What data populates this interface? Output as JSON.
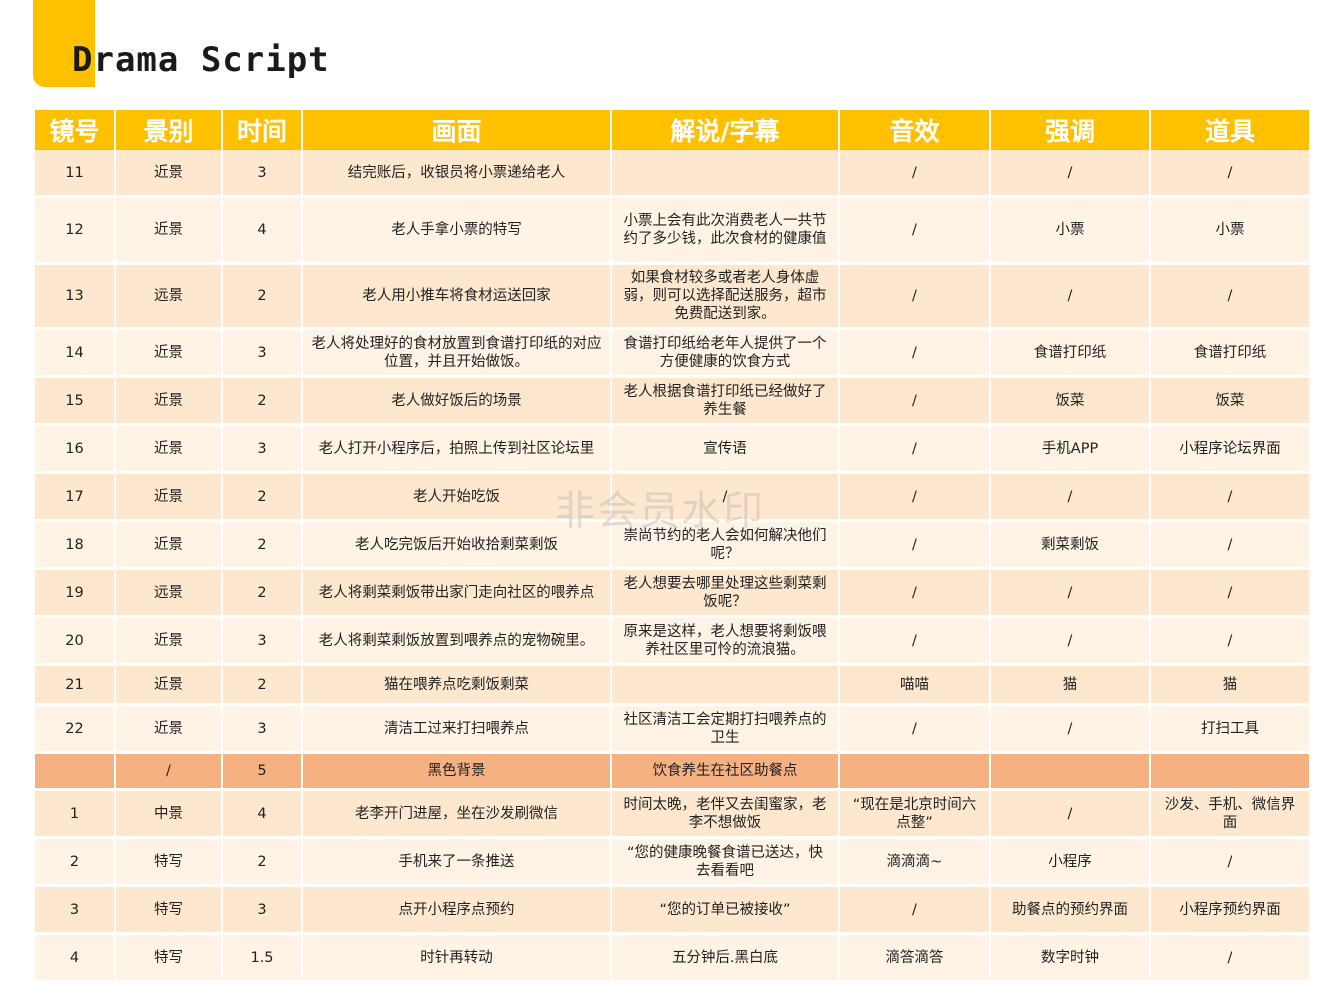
{
  "title": "Drama Script",
  "watermark": "非会员水印",
  "colors": {
    "header": "#ffc000",
    "row_odd": "#fde8cf",
    "row_even": "#fff3e6",
    "divider": "#f6b183"
  },
  "headers": [
    "镜号",
    "景别",
    "时间",
    "画面",
    "解说/字幕",
    "音效",
    "强调",
    "道具"
  ],
  "rows": [
    {
      "type": "odd",
      "top": [
        5,
        6,
        7
      ],
      "cells": [
        "11",
        "近景",
        "3",
        "结完账后，收银员将小票递给老人",
        "",
        "/",
        "/",
        "/"
      ]
    },
    {
      "type": "even",
      "top": [
        5
      ],
      "cells": [
        "12",
        "近景",
        "4",
        "老人手拿小票的特写",
        "小票上会有此次消费老人一共节约了多少钱，此次食材的健康值",
        "/",
        "小票",
        "小票"
      ]
    },
    {
      "type": "odd",
      "top": [
        5,
        6,
        7
      ],
      "cells": [
        "13",
        "远景",
        "2",
        "老人用小推车将食材运送回家",
        "如果食材较多或者老人身体虚弱，则可以选择配送服务，超市免费配送到家。",
        "/",
        "/",
        "/"
      ]
    },
    {
      "type": "even",
      "top": [
        5,
        7
      ],
      "cells": [
        "14",
        "近景",
        "3",
        "老人将处理好的食材放置到食谱打印纸的对应位置，并且开始做饭。",
        "食谱打印纸给老年人提供了一个方便健康的饮食方式",
        "/",
        "食谱打印纸",
        "食谱打印纸"
      ]
    },
    {
      "type": "odd",
      "top": [
        5
      ],
      "cells": [
        "15",
        "近景",
        "2",
        "老人做好饭后的场景",
        "老人根据食谱打印纸已经做好了养生餐",
        "/",
        "饭菜",
        "饭菜"
      ]
    },
    {
      "type": "even",
      "top": [
        5
      ],
      "cells": [
        "16",
        "近景",
        "3",
        "老人打开小程序后，拍照上传到社区论坛里",
        "宣传语",
        "/",
        "手机APP",
        "小程序论坛界面"
      ]
    },
    {
      "type": "odd",
      "top": [
        5,
        6,
        7
      ],
      "cells": [
        "17",
        "近景",
        "2",
        "老人开始吃饭",
        "/",
        "/",
        "/",
        "/"
      ]
    },
    {
      "type": "even",
      "top": [
        5,
        7
      ],
      "cells": [
        "18",
        "近景",
        "2",
        "老人吃完饭后开始收拾剩菜剩饭",
        "崇尚节约的老人会如何解决他们呢？",
        "/",
        "剩菜剩饭",
        "/"
      ]
    },
    {
      "type": "odd",
      "top": [
        5,
        6,
        7
      ],
      "cells": [
        "19",
        "远景",
        "2",
        "老人将剩菜剩饭带出家门走向社区的喂养点",
        "老人想要去哪里处理这些剩菜剩饭呢？",
        "/",
        "/",
        "/"
      ]
    },
    {
      "type": "even",
      "top": [
        5,
        6,
        7
      ],
      "cells": [
        "20",
        "近景",
        "3",
        "老人将剩菜剩饭放置到喂养点的宠物碗里。",
        "原来是这样，老人想要将剩饭喂养社区里可怜的流浪猫。",
        "/",
        "/",
        "/"
      ]
    },
    {
      "type": "odd",
      "top": [],
      "cells": [
        "21",
        "近景",
        "2",
        "猫在喂养点吃剩饭剩菜",
        "",
        "喵喵",
        "猫",
        "猫"
      ]
    },
    {
      "type": "even",
      "top": [
        5
      ],
      "cells": [
        "22",
        "近景",
        "3",
        "清洁工过来打扫喂养点",
        "社区清洁工会定期打扫喂养点的卫生",
        "/",
        "/",
        "打扫工具"
      ]
    },
    {
      "type": "divider",
      "top": [],
      "cells": [
        "",
        "/",
        "5",
        "黑色背景",
        "饮食养生在社区助餐点",
        "",
        "",
        ""
      ]
    },
    {
      "type": "odd",
      "top": [
        0,
        1,
        2,
        3,
        4,
        5,
        6,
        7
      ],
      "cells": [
        "1",
        "中景",
        "4",
        "老李开门进屋，坐在沙发刷微信",
        "时间太晚，老伴又去闺蜜家，老李不想做饭",
        "“现在是北京时间六点整”",
        "/",
        "沙发、手机、微信界面"
      ]
    },
    {
      "type": "even",
      "top": [
        0,
        1,
        2,
        3,
        4,
        5,
        6,
        7
      ],
      "cells": [
        "2",
        "特写",
        "2",
        "手机来了一条推送",
        "“您的健康晚餐食谱已送达，快去看看吧",
        "滴滴滴~",
        "小程序",
        "/"
      ]
    },
    {
      "type": "odd",
      "top": [
        0,
        1,
        2,
        3,
        4,
        5,
        6,
        7
      ],
      "cells": [
        "3",
        "特写",
        "3",
        "点开小程序点预约",
        "“您的订单已被接收”",
        "/",
        "助餐点的预约界面",
        "小程序预约界面"
      ]
    },
    {
      "type": "even",
      "top": [
        0,
        1,
        2,
        3,
        4,
        5,
        6,
        7
      ],
      "cells": [
        "4",
        "特写",
        "1.5",
        "时针再转动",
        "五分钟后.黑白底",
        "滴答滴答",
        "数字时钟",
        "/"
      ]
    }
  ]
}
